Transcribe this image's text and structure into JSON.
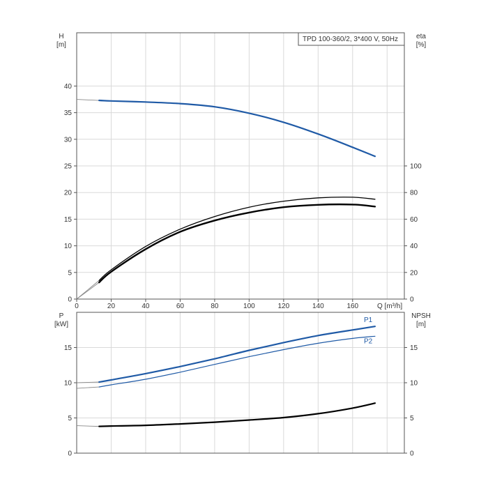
{
  "colors": {
    "blue": "#1f5aa6",
    "black": "#000000",
    "grey": "#888888",
    "grid": "#d9d9d9",
    "frame": "#555555"
  },
  "chart_data": [
    {
      "type": "line",
      "title": "TPD 100-360/2, 3*400 V, 50Hz",
      "xlabel": "Q [m³/h]",
      "ylabel_left": [
        "H",
        "[m]"
      ],
      "ylabel_right": [
        "eta",
        "[%]"
      ],
      "xlim": [
        0,
        190
      ],
      "ylim_left": [
        0,
        50
      ],
      "ylim_right": [
        0,
        200
      ],
      "x_ticks": [
        "0",
        "20",
        "40",
        "60",
        "80",
        "100",
        "120",
        "140",
        "160"
      ],
      "y_ticks_left": [
        "0",
        "5",
        "10",
        "15",
        "20",
        "25",
        "30",
        "35",
        "40"
      ],
      "y_ticks_right": [
        "0",
        "20",
        "40",
        "60",
        "80",
        "100"
      ],
      "grid": true,
      "series": [
        {
          "axis": "left",
          "color": "blue",
          "width": 2.2,
          "extension_x": [
            0,
            13
          ],
          "x": [
            13,
            20,
            40,
            60,
            80,
            100,
            120,
            140,
            160,
            173
          ],
          "y": [
            37.3,
            37.2,
            37.0,
            36.7,
            36.1,
            34.9,
            33.2,
            31.0,
            28.5,
            26.8
          ]
        },
        {
          "axis": "right",
          "color": "black",
          "width": 2.4,
          "extension_x": [
            0,
            13
          ],
          "x": [
            13,
            20,
            40,
            60,
            80,
            100,
            120,
            140,
            160,
            173
          ],
          "y": [
            12.5,
            20.5,
            37.5,
            50.5,
            59.0,
            65.0,
            69.0,
            70.8,
            71.0,
            69.5
          ]
        },
        {
          "axis": "right",
          "color": "black",
          "width": 1.3,
          "extension_x": [
            0,
            13
          ],
          "x": [
            13,
            20,
            40,
            60,
            80,
            100,
            120,
            140,
            160,
            173
          ],
          "y": [
            14.0,
            22.0,
            39.5,
            52.5,
            62.0,
            69.0,
            73.5,
            76.0,
            76.5,
            75.0
          ]
        }
      ]
    },
    {
      "type": "line",
      "xlabel": "",
      "ylabel_left": [
        "P",
        "[kW]"
      ],
      "ylabel_right": [
        "NPSH",
        "[m]"
      ],
      "xlim": [
        0,
        190
      ],
      "ylim_left": [
        0,
        20
      ],
      "ylim_right": [
        0,
        20
      ],
      "y_ticks_left": [
        "0",
        "5",
        "10",
        "15"
      ],
      "y_ticks_right": [
        "0",
        "5",
        "10",
        "15"
      ],
      "grid": true,
      "series": [
        {
          "name": "P1",
          "axis": "left",
          "color": "blue",
          "width": 2.2,
          "extension_x": [
            0,
            13
          ],
          "x": [
            0,
            13,
            20,
            40,
            60,
            80,
            100,
            120,
            140,
            160,
            173
          ],
          "y": [
            10.0,
            10.1,
            10.4,
            11.3,
            12.3,
            13.4,
            14.6,
            15.7,
            16.7,
            17.5,
            18.0
          ]
        },
        {
          "name": "P2",
          "axis": "left",
          "color": "blue",
          "width": 1.2,
          "extension_x": [
            0,
            13
          ],
          "x": [
            0,
            13,
            20,
            40,
            60,
            80,
            100,
            120,
            140,
            160,
            173
          ],
          "y": [
            9.2,
            9.4,
            9.7,
            10.5,
            11.5,
            12.6,
            13.7,
            14.7,
            15.6,
            16.3,
            16.6
          ]
        },
        {
          "axis": "right",
          "color": "black",
          "width": 2.2,
          "extension_x": [
            0,
            13
          ],
          "x": [
            0,
            13,
            20,
            40,
            60,
            80,
            100,
            120,
            140,
            160,
            173
          ],
          "y": [
            3.9,
            3.8,
            3.85,
            3.95,
            4.15,
            4.4,
            4.7,
            5.05,
            5.6,
            6.4,
            7.1
          ]
        }
      ]
    }
  ]
}
